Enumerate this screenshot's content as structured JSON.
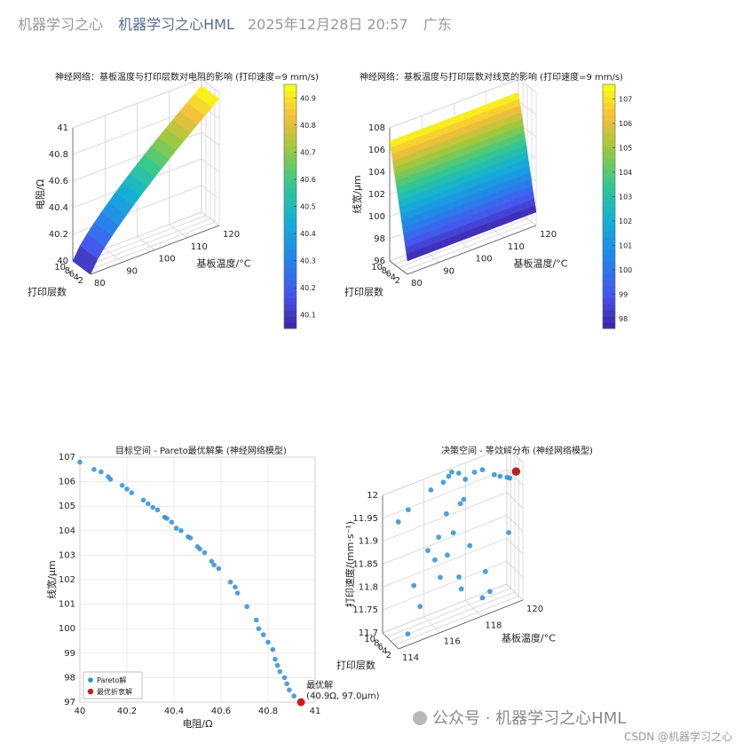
{
  "header": {
    "source": "机器学习之心",
    "account": "机器学习之心HML",
    "datetime": "2025年12月28日 20:57",
    "location": "广东"
  },
  "watermark": {
    "text": "公众号 · 机器学习之心HML",
    "icon": "wechat-icon"
  },
  "footer": {
    "text": "CSDN @机器学习之心"
  },
  "colors": {
    "parula_low": "#3e26a8",
    "parula_mid": "#16b99c",
    "parula_high": "#f9fb15",
    "scatter": "#2f8fd2",
    "optimal": "#cc1b1b"
  },
  "chart_data": [
    {
      "type": "surface",
      "title": "神经网络：基板温度与打印层数对电阻的影响 (打印速度=9 mm/s)",
      "xlabel": "基板温度/°C",
      "ylabel": "打印层数",
      "zlabel": "电阻/Ω",
      "xticks": [
        "80",
        "90",
        "100",
        "110",
        "120"
      ],
      "yticks": [
        "2",
        "4",
        "6",
        "8",
        "10"
      ],
      "zticks": [
        "40",
        "40.2",
        "40.4",
        "40.6",
        "40.8",
        "41"
      ],
      "xlim": [
        80,
        120
      ],
      "ylim": [
        2,
        10
      ],
      "zlim": [
        40,
        41
      ],
      "colorbar": {
        "ticks": [
          "40.1",
          "40.2",
          "40.3",
          "40.4",
          "40.5",
          "40.6",
          "40.7",
          "40.8",
          "40.9"
        ],
        "range": [
          40.05,
          40.95
        ]
      },
      "corners": {
        "T80_L10": 40.0,
        "T120_L10": 40.95,
        "T80_L2": 40.0,
        "T120_L2": 40.95
      }
    },
    {
      "type": "surface",
      "title": "神经网络：基板温度与打印层数对线宽的影响 (打印速度=9 mm/s)",
      "xlabel": "基板温度/°C",
      "ylabel": "打印层数",
      "zlabel": "线宽/μm",
      "xticks": [
        "80",
        "90",
        "100",
        "110",
        "120"
      ],
      "yticks": [
        "2",
        "4",
        "6",
        "8",
        "10"
      ],
      "zticks": [
        "96",
        "98",
        "100",
        "102",
        "104",
        "106",
        "108"
      ],
      "xlim": [
        80,
        120
      ],
      "ylim": [
        2,
        10
      ],
      "zlim": [
        96,
        108
      ],
      "colorbar": {
        "ticks": [
          "98",
          "99",
          "100",
          "101",
          "102",
          "103",
          "104",
          "105",
          "106",
          "107"
        ],
        "range": [
          97.6,
          107.6
        ]
      },
      "corners": {
        "T80_L10": 106.8,
        "T120_L10": 106.8,
        "T80_L2": 97.2,
        "T120_L2": 97.2
      }
    },
    {
      "type": "scatter",
      "title": "目标空间 - Pareto最优解集 (神经网络模型)",
      "xlabel": "电阻/Ω",
      "ylabel": "线宽/μm",
      "xticks": [
        "40",
        "40.2",
        "40.4",
        "40.6",
        "40.8",
        "41"
      ],
      "yticks": [
        "97",
        "98",
        "99",
        "100",
        "101",
        "102",
        "103",
        "104",
        "105",
        "106",
        "107"
      ],
      "xlim": [
        40,
        41
      ],
      "ylim": [
        97,
        107
      ],
      "grid": true,
      "legend": {
        "placement": "bottom-left",
        "entries": [
          "Pareto解",
          "最优折衷解"
        ]
      },
      "series": [
        {
          "name": "Pareto解",
          "x": [
            40.0,
            40.06,
            40.09,
            40.12,
            40.13,
            40.18,
            40.2,
            40.22,
            40.27,
            40.29,
            40.31,
            40.33,
            40.36,
            40.37,
            40.39,
            40.41,
            40.43,
            40.46,
            40.47,
            40.5,
            40.51,
            40.53,
            40.56,
            40.57,
            40.59,
            40.64,
            40.66,
            40.67,
            40.71,
            40.75,
            40.76,
            40.78,
            40.8,
            40.82,
            40.83,
            40.84,
            40.85,
            40.87,
            40.88,
            40.89,
            40.91
          ],
          "y": [
            106.8,
            106.5,
            106.4,
            106.2,
            106.1,
            105.85,
            105.7,
            105.55,
            105.25,
            105.1,
            104.95,
            104.85,
            104.55,
            104.5,
            104.35,
            104.1,
            104.0,
            103.75,
            103.7,
            103.35,
            103.25,
            103.1,
            102.75,
            102.6,
            102.45,
            101.9,
            101.7,
            101.45,
            100.9,
            100.35,
            100.0,
            99.75,
            99.45,
            99.15,
            98.75,
            98.5,
            98.25,
            98.0,
            97.75,
            97.5,
            97.25
          ]
        },
        {
          "name": "最优折衷解",
          "x": [
            40.94
          ],
          "y": [
            97.0
          ]
        }
      ],
      "annotation": {
        "label": "最优解",
        "text": "(40.9Ω, 97.0μm)"
      }
    },
    {
      "type": "scatter3d",
      "title": "决策空间 - 等效解分布 (神经网络模型)",
      "xlabel": "基板温度/°C",
      "ylabel": "打印层数",
      "zlabel": "打印速度/(mm·s⁻¹)",
      "xticks": [
        "114",
        "116",
        "118",
        "120"
      ],
      "yticks": [
        "2",
        "4",
        "6",
        "8",
        "10"
      ],
      "zticks": [
        "11.7",
        "11.75",
        "11.8",
        "11.85",
        "11.9",
        "11.95",
        "12"
      ],
      "xlim": [
        114,
        120
      ],
      "ylim": [
        2,
        10
      ],
      "zlim": [
        11.7,
        12.0
      ]
    }
  ]
}
